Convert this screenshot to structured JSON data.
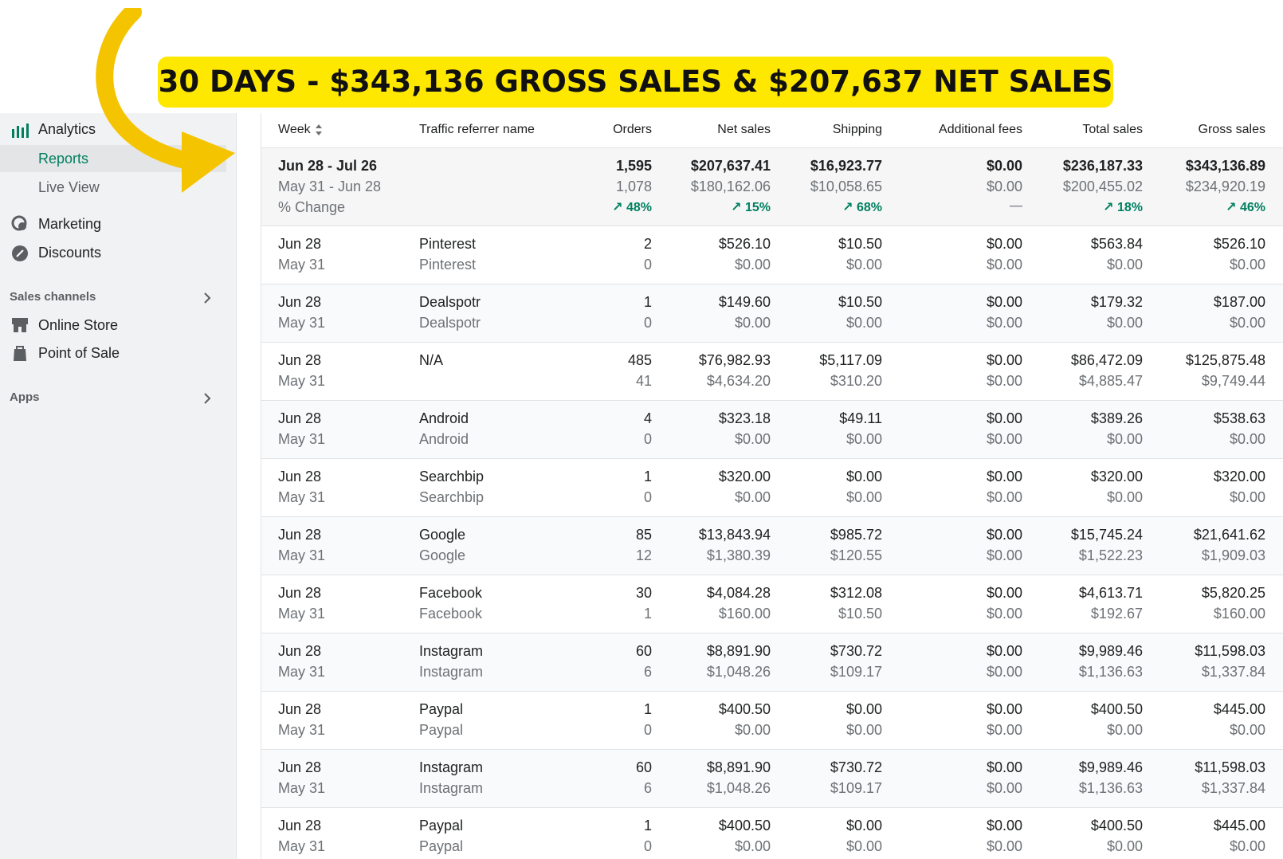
{
  "banner": {
    "text": "30 DAYS - $343,136 GROSS SALES & $207,637 NET SALES"
  },
  "sidebar": {
    "analytics": "Analytics",
    "subitems": [
      "Reports",
      "Live View"
    ],
    "items": [
      "Marketing",
      "Discounts"
    ],
    "sales_channels": {
      "title": "Sales channels",
      "items": [
        "Online Store",
        "Point of Sale"
      ]
    },
    "apps": "Apps"
  },
  "table": {
    "columns": [
      "Week",
      "Traffic referrer name",
      "Orders",
      "Net sales",
      "Shipping",
      "Additional fees",
      "Total sales",
      "Gross sales"
    ],
    "summary": {
      "current_label": "Jun 28 - Jul 26",
      "previous_label": "May 31 - Jun 28",
      "change_label": "% Change",
      "current": [
        "1,595",
        "$207,637.41",
        "$16,923.77",
        "$0.00",
        "$236,187.33",
        "$343,136.89"
      ],
      "previous": [
        "1,078",
        "$180,162.06",
        "$10,058.65",
        "$0.00",
        "$200,455.02",
        "$234,920.19"
      ],
      "change": [
        "48%",
        "15%",
        "68%",
        "—",
        "18%",
        "46%"
      ]
    },
    "rows": [
      {
        "week": "Jun 28",
        "previous_week": "May 31",
        "referrer": "Pinterest",
        "previous_referrer": "Pinterest",
        "current": [
          "2",
          "$526.10",
          "$10.50",
          "$0.00",
          "$563.84",
          "$526.10"
        ],
        "previous": [
          "0",
          "$0.00",
          "$0.00",
          "$0.00",
          "$0.00",
          "$0.00"
        ]
      },
      {
        "week": "Jun 28",
        "previous_week": "May 31",
        "referrer": "Dealspotr",
        "previous_referrer": "Dealspotr",
        "current": [
          "1",
          "$149.60",
          "$10.50",
          "$0.00",
          "$179.32",
          "$187.00"
        ],
        "previous": [
          "0",
          "$0.00",
          "$0.00",
          "$0.00",
          "$0.00",
          "$0.00"
        ]
      },
      {
        "week": "Jun 28",
        "previous_week": "May 31",
        "referrer": "N/A",
        "current": [
          "485",
          "$76,982.93",
          "$5,117.09",
          "$0.00",
          "$86,472.09",
          "$125,875.48"
        ],
        "previous": [
          "41",
          "$4,634.20",
          "$310.20",
          "$0.00",
          "$4,885.47",
          "$9,749.44"
        ]
      },
      {
        "week": "Jun 28",
        "previous_week": "May 31",
        "referrer": "Android",
        "previous_referrer": "Android",
        "current": [
          "4",
          "$323.18",
          "$49.11",
          "$0.00",
          "$389.26",
          "$538.63"
        ],
        "previous": [
          "0",
          "$0.00",
          "$0.00",
          "$0.00",
          "$0.00",
          "$0.00"
        ]
      },
      {
        "week": "Jun 28",
        "previous_week": "May 31",
        "referrer": "Searchbip",
        "previous_referrer": "Searchbip",
        "current": [
          "1",
          "$320.00",
          "$0.00",
          "$0.00",
          "$320.00",
          "$320.00"
        ],
        "previous": [
          "0",
          "$0.00",
          "$0.00",
          "$0.00",
          "$0.00",
          "$0.00"
        ]
      },
      {
        "week": "Jun 28",
        "previous_week": "May 31",
        "referrer": "Google",
        "previous_referrer": "Google",
        "current": [
          "85",
          "$13,843.94",
          "$985.72",
          "$0.00",
          "$15,745.24",
          "$21,641.62"
        ],
        "previous": [
          "12",
          "$1,380.39",
          "$120.55",
          "$0.00",
          "$1,522.23",
          "$1,909.03"
        ]
      },
      {
        "week": "Jun 28",
        "previous_week": "May 31",
        "referrer": "Facebook",
        "previous_referrer": "Facebook",
        "current": [
          "30",
          "$4,084.28",
          "$312.08",
          "$0.00",
          "$4,613.71",
          "$5,820.25"
        ],
        "previous": [
          "1",
          "$160.00",
          "$10.50",
          "$0.00",
          "$192.67",
          "$160.00"
        ]
      },
      {
        "week": "Jun 28",
        "previous_week": "May 31",
        "referrer": "Instagram",
        "previous_referrer": "Instagram",
        "current": [
          "60",
          "$8,891.90",
          "$730.72",
          "$0.00",
          "$9,989.46",
          "$11,598.03"
        ],
        "previous": [
          "6",
          "$1,048.26",
          "$109.17",
          "$0.00",
          "$1,136.63",
          "$1,337.84"
        ]
      },
      {
        "week": "Jun 28",
        "previous_week": "May 31",
        "referrer": "Paypal",
        "previous_referrer": "Paypal",
        "current": [
          "1",
          "$400.50",
          "$0.00",
          "$0.00",
          "$400.50",
          "$445.00"
        ],
        "previous": [
          "0",
          "$0.00",
          "$0.00",
          "$0.00",
          "$0.00",
          "$0.00"
        ]
      },
      {
        "week": "Jun 28",
        "previous_week": "May 31",
        "referrer": "Instagram",
        "previous_referrer": "Instagram",
        "current": [
          "60",
          "$8,891.90",
          "$730.72",
          "$0.00",
          "$9,989.46",
          "$11,598.03"
        ],
        "previous": [
          "6",
          "$1,048.26",
          "$109.17",
          "$0.00",
          "$1,136.63",
          "$1,337.84"
        ]
      },
      {
        "week": "Jun 28",
        "previous_week": "May 31",
        "referrer": "Paypal",
        "previous_referrer": "Paypal",
        "current": [
          "1",
          "$400.50",
          "$0.00",
          "$0.00",
          "$400.50",
          "$445.00"
        ],
        "previous": [
          "0",
          "$0.00",
          "$0.00",
          "$0.00",
          "$0.00",
          "$0.00"
        ]
      }
    ]
  }
}
